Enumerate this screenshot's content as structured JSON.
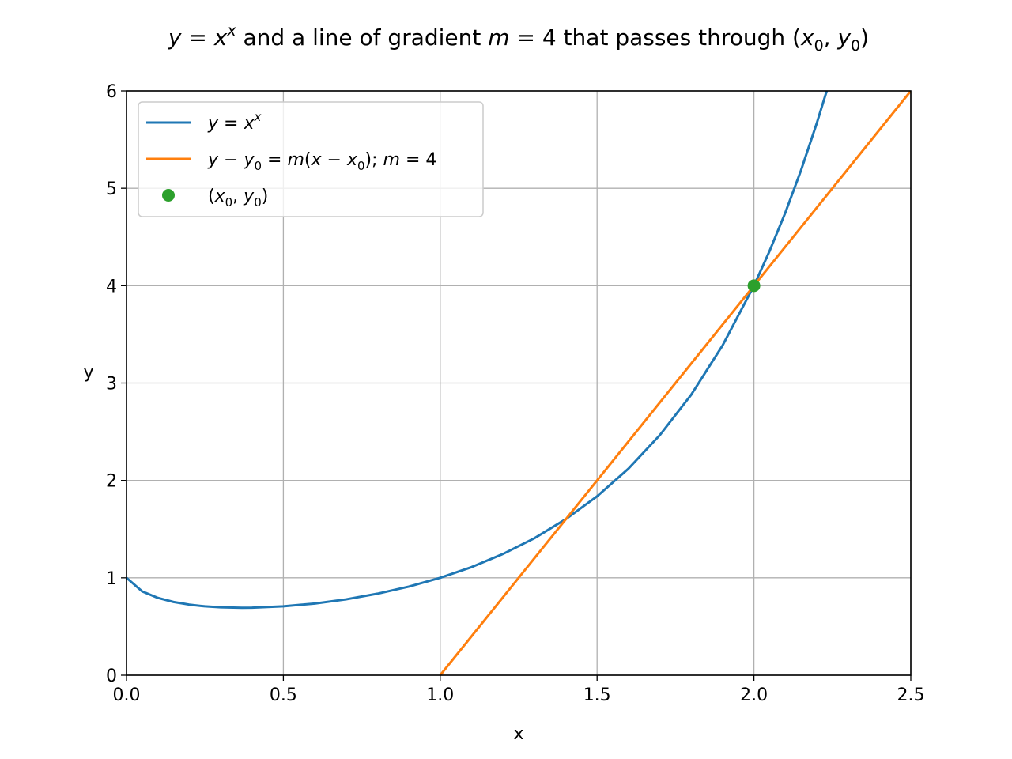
{
  "chart_data": {
    "type": "line",
    "title": "y = x^x and a line of gradient m = 4 that passes through (x_0, y_0)",
    "title_parts": {
      "y": "y",
      "eq": " = ",
      "x": "x",
      "sup": "x",
      "mid": " and a line of gradient ",
      "m": "m",
      "eq2": " = 4 that passes through (",
      "x0x": "x",
      "x0sub": "0",
      "comma": ", ",
      "y0y": "y",
      "y0sub": "0",
      "close": ")"
    },
    "xlabel": "x",
    "ylabel": "y",
    "xlim": [
      0.0,
      2.5
    ],
    "ylim": [
      0,
      6
    ],
    "xticks": [
      "0.0",
      "0.5",
      "1.0",
      "1.5",
      "2.0",
      "2.5"
    ],
    "yticks": [
      "0",
      "1",
      "2",
      "3",
      "4",
      "5",
      "6"
    ],
    "grid": true,
    "legend_position": "upper-left",
    "series": [
      {
        "name": "y = x^x",
        "kind": "line",
        "color": "#1f77b4",
        "x": [
          0.0,
          0.05,
          0.1,
          0.15,
          0.2,
          0.25,
          0.3,
          0.368,
          0.4,
          0.5,
          0.6,
          0.7,
          0.8,
          0.9,
          1.0,
          1.1,
          1.2,
          1.3,
          1.4,
          1.5,
          1.6,
          1.7,
          1.8,
          1.9,
          2.0,
          2.05,
          2.1,
          2.15,
          2.2,
          2.24
        ],
        "y": [
          1.0,
          0.861,
          0.794,
          0.752,
          0.725,
          0.707,
          0.697,
          0.692,
          0.693,
          0.707,
          0.736,
          0.779,
          0.837,
          0.91,
          1.0,
          1.11,
          1.245,
          1.406,
          1.602,
          1.837,
          2.121,
          2.465,
          2.88,
          3.386,
          4.0,
          4.357,
          4.749,
          5.184,
          5.666,
          6.084
        ]
      },
      {
        "name": "y - y_0 = m(x - x_0); m = 4",
        "kind": "line",
        "color": "#ff7f0e",
        "x": [
          1.0,
          2.5
        ],
        "y": [
          0,
          6
        ]
      },
      {
        "name": "(x_0, y_0)",
        "kind": "point",
        "color": "#2ca02c",
        "x": [
          2.0
        ],
        "y": [
          4.0
        ]
      }
    ]
  }
}
